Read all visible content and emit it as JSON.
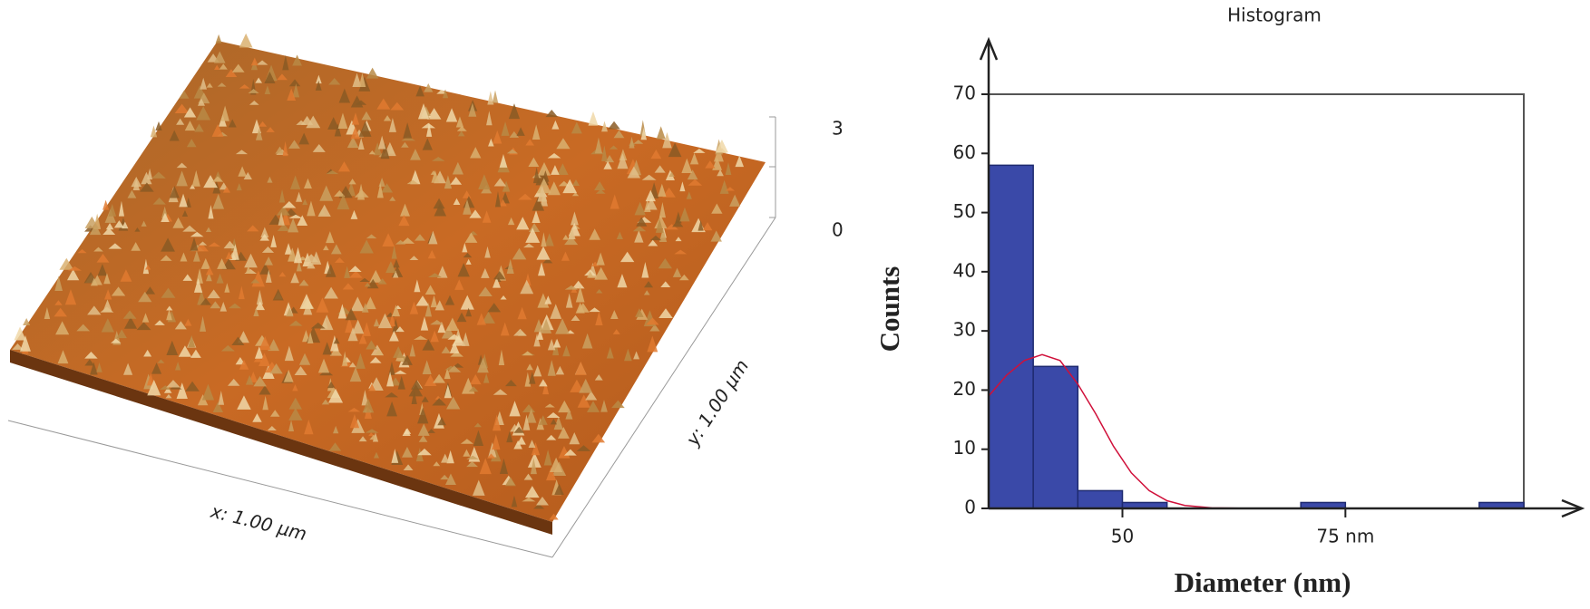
{
  "afm_image": {
    "x_label": "x: 1.00 µm",
    "y_label": "y: 1.00 µm",
    "z_ticks": [
      "3",
      "0"
    ]
  },
  "chart_data": {
    "type": "histogram",
    "title": "Histogram",
    "x_label": "Diameter (nm)",
    "y_label": "Counts",
    "bins": [
      35,
      40,
      45,
      50,
      55,
      60,
      65,
      70,
      75,
      80,
      85,
      90,
      95
    ],
    "values": [
      58,
      24,
      3,
      1,
      0,
      0,
      0,
      1,
      0,
      0,
      0,
      1
    ],
    "color": "#3a49a8",
    "fit_curve": {
      "color": "#d0103a",
      "x": [
        35,
        37,
        39,
        41,
        43,
        45,
        47,
        49,
        51,
        53,
        55,
        57,
        60,
        65,
        95
      ],
      "values": [
        19,
        22.5,
        25,
        26,
        25,
        21,
        16,
        10.5,
        6,
        3,
        1.3,
        0.5,
        0.1,
        0,
        0
      ]
    },
    "xlim": [
      35,
      95
    ],
    "ylim": [
      0,
      70
    ],
    "xticks": [
      50,
      {
        "value": 75,
        "label": "75 nm"
      }
    ],
    "yticks": [
      0,
      10,
      20,
      30,
      40,
      50,
      60,
      70
    ]
  }
}
